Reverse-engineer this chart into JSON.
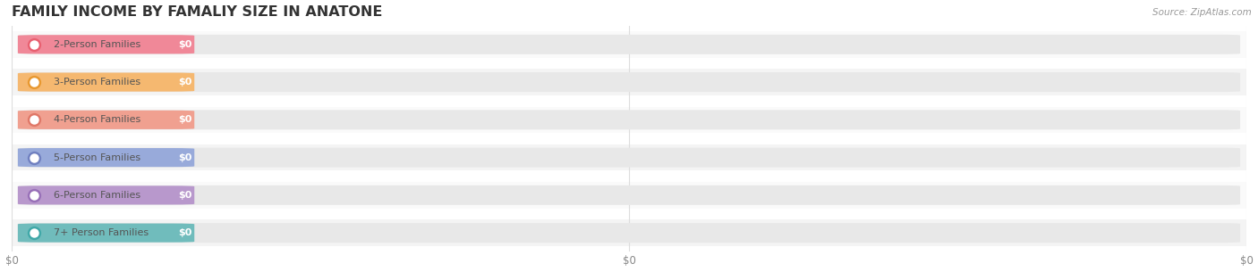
{
  "title": "FAMILY INCOME BY FAMALIY SIZE IN ANATONE",
  "source": "Source: ZipAtlas.com",
  "categories": [
    "2-Person Families",
    "3-Person Families",
    "4-Person Families",
    "5-Person Families",
    "6-Person Families",
    "7+ Person Families"
  ],
  "values": [
    0,
    0,
    0,
    0,
    0,
    0
  ],
  "bar_colors": [
    "#F08898",
    "#F5B870",
    "#F0A090",
    "#98AADA",
    "#B898CC",
    "#70BCBC"
  ],
  "dot_colors": [
    "#E86070",
    "#E89830",
    "#E07868",
    "#7080C0",
    "#9870B8",
    "#40A8A8"
  ],
  "row_colors": [
    "#FAFAFA",
    "#F4F4F4"
  ],
  "pill_bg": "#E8E8E8",
  "label_color": "#555555",
  "value_color": "#FFFFFF",
  "title_color": "#333333",
  "source_color": "#999999",
  "grid_color": "#DDDDDD",
  "figsize": [
    14.06,
    3.05
  ],
  "dpi": 100
}
